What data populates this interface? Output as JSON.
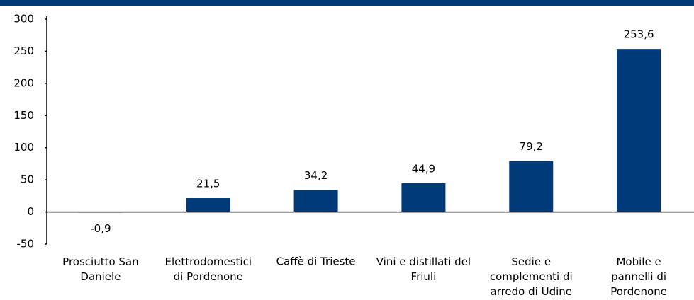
{
  "chart_data": {
    "type": "bar",
    "categories": [
      "Prosciutto San\nDaniele",
      "Elettrodomestici\ndi Pordenone",
      "Caffè di Trieste",
      "Vini e distillati del\nFriuli",
      "Sedie e\ncomplementi di\narredo di Udine",
      "Mobile e\npannelli di\nPordenone"
    ],
    "values": [
      -0.9,
      21.5,
      34.2,
      44.9,
      79.2,
      253.6
    ],
    "value_labels": [
      "-0,9",
      "21,5",
      "34,2",
      "44,9",
      "79,2",
      "253,6"
    ],
    "color": "#003a78",
    "ylim": [
      -50,
      300
    ],
    "yticks": [
      -50,
      0,
      50,
      100,
      150,
      200,
      250,
      300
    ]
  }
}
